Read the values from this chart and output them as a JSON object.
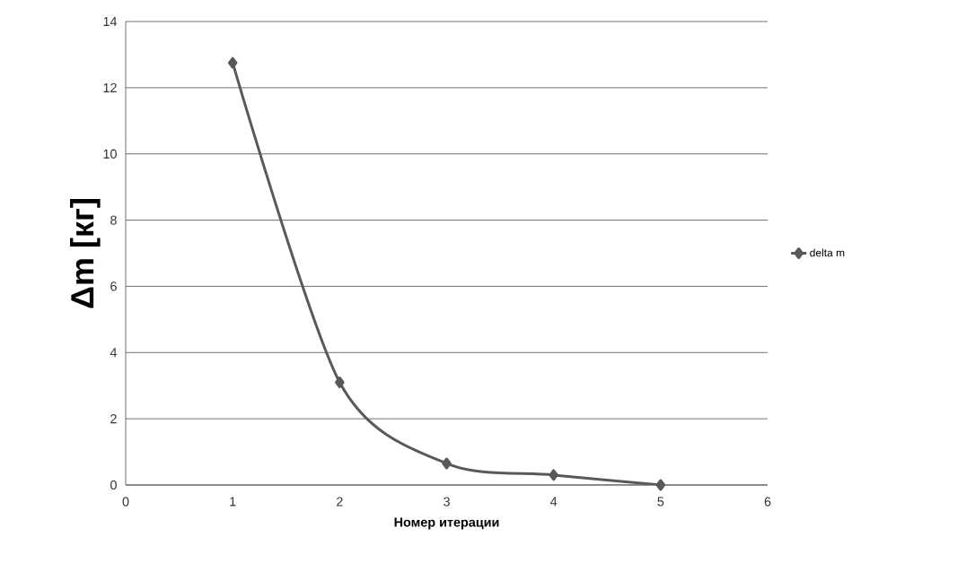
{
  "chart_data": {
    "type": "line",
    "xlabel": "Номер итерации",
    "ylabel": "Δm  [кг]",
    "x": [
      1,
      2,
      3,
      4,
      5
    ],
    "series": [
      {
        "name": "delta m",
        "color": "#595959",
        "values": [
          12.75,
          3.1,
          0.65,
          0.3,
          0
        ]
      }
    ],
    "xlim": [
      0,
      6
    ],
    "xticks": [
      0,
      1,
      2,
      3,
      4,
      5,
      6
    ],
    "ylim": [
      0,
      14
    ],
    "yticks": [
      0,
      2,
      4,
      6,
      8,
      10,
      12,
      14
    ],
    "grid": "y",
    "legend": "right",
    "marker": "diamond",
    "line_style": "solid"
  }
}
